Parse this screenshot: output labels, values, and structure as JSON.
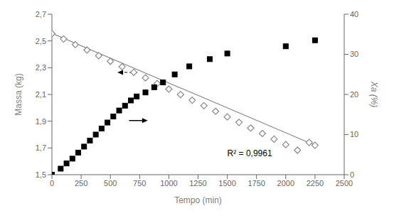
{
  "chart_data": {
    "type": "scatter",
    "xlabel": "Tempo (min)",
    "ylabel": "Massa (kg)",
    "y2label": "Xa (%)",
    "grid": false,
    "xlim": [
      0,
      2500
    ],
    "xticks": [
      0,
      250,
      500,
      750,
      1000,
      1250,
      1500,
      1750,
      2000,
      2250,
      2500
    ],
    "ylim": [
      1.5,
      2.7
    ],
    "yticks": [
      {
        "value": 1.5,
        "label": "1,5"
      },
      {
        "value": 1.7,
        "label": "1,7"
      },
      {
        "value": 1.9,
        "label": "1,9"
      },
      {
        "value": 2.1,
        "label": "2,1"
      },
      {
        "value": 2.3,
        "label": "2,3"
      },
      {
        "value": 2.5,
        "label": "2,5"
      },
      {
        "value": 2.7,
        "label": "2,7"
      }
    ],
    "y2lim": [
      0,
      40
    ],
    "y2ticks": [
      0,
      10,
      20,
      30,
      40
    ],
    "series": [
      {
        "type": "line",
        "color": "#888888",
        "line_style": "solid",
        "x": [
          0,
          2250
        ],
        "values": [
          2.558,
          1.72
        ]
      },
      {
        "type": "scatter",
        "marker": "diamond",
        "color": "#888888",
        "x": [
          0,
          100,
          200,
          300,
          400,
          500,
          600,
          700,
          800,
          900,
          1000,
          1100,
          1200,
          1300,
          1400,
          1500,
          1600,
          1700,
          1800,
          1900,
          2000,
          2100,
          2200,
          2250
        ],
        "values": [
          2.555,
          2.515,
          2.473,
          2.432,
          2.39,
          2.348,
          2.307,
          2.265,
          2.224,
          2.182,
          2.14,
          2.099,
          2.057,
          2.016,
          1.974,
          1.932,
          1.891,
          1.849,
          1.808,
          1.766,
          1.725,
          1.683,
          1.741,
          1.72
        ]
      },
      {
        "type": "scatter",
        "marker": "square",
        "color": "#000000",
        "axis": "y2",
        "x": [
          0,
          75,
          125,
          175,
          225,
          275,
          325,
          375,
          425,
          475,
          525,
          575,
          625,
          675,
          725,
          800,
          875,
          950,
          1050,
          1175,
          1350,
          1500,
          2000,
          2250
        ],
        "values": [
          0.0,
          1.5,
          2.8,
          4.0,
          5.5,
          7.0,
          8.5,
          10.0,
          11.5,
          13.0,
          14.5,
          16.0,
          17.2,
          18.5,
          19.5,
          20.5,
          21.8,
          23.0,
          25.0,
          27.0,
          28.8,
          30.2,
          32.0,
          33.5
        ]
      }
    ],
    "annotations": [
      {
        "text": "R² = 0,9961",
        "x": 1500,
        "y": 1.66
      },
      {
        "type": "arrow",
        "line_style": "dashed",
        "x": [
          730,
          560
        ],
        "values": [
          2.265,
          2.265
        ]
      },
      {
        "type": "arrow",
        "line_style": "solid",
        "x": [
          660,
          820
        ],
        "values": [
          1.905,
          1.905
        ]
      }
    ]
  }
}
